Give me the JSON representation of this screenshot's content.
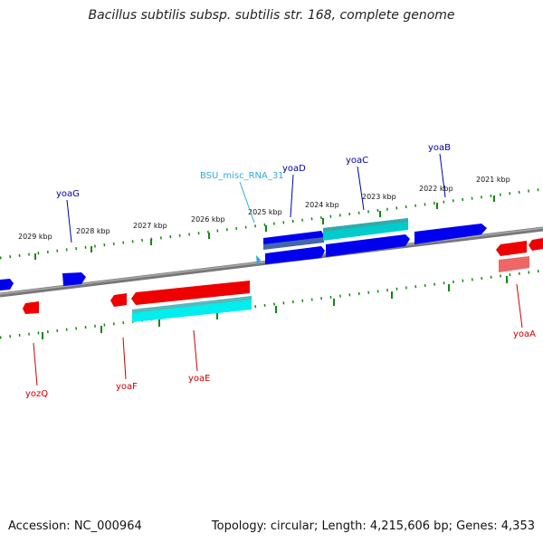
{
  "header": {
    "title": "Bacillus subtilis subsp. subtilis str. 168, complete genome"
  },
  "footer": {
    "accession": "Accession: NC_000964",
    "summary": "Topology: circular; Length: 4,215,606 bp; Genes: 4,353"
  },
  "scale_labels": [
    "2029 kbp",
    "2028 kbp",
    "2027 kbp",
    "2026 kbp",
    "2025 kbp",
    "2024 kbp",
    "2023 kbp",
    "2022 kbp",
    "2021 kbp"
  ],
  "gene_labels": {
    "yoaG": "yoaG",
    "yoaD": "yoaD",
    "yoaC": "yoaC",
    "yoaB": "yoaB",
    "misc_rna": "BSU_misc_RNA_31",
    "yozQ": "yozQ",
    "yoaF": "yoaF",
    "yoaE": "yoaE",
    "yoaA": "yoaA"
  },
  "colors": {
    "forward": "#0000ee",
    "reverse": "#ee0000",
    "cyan": "#00cccc",
    "misc_rna": "#33aadd",
    "backbone": "#777777",
    "tick": "#118811"
  }
}
